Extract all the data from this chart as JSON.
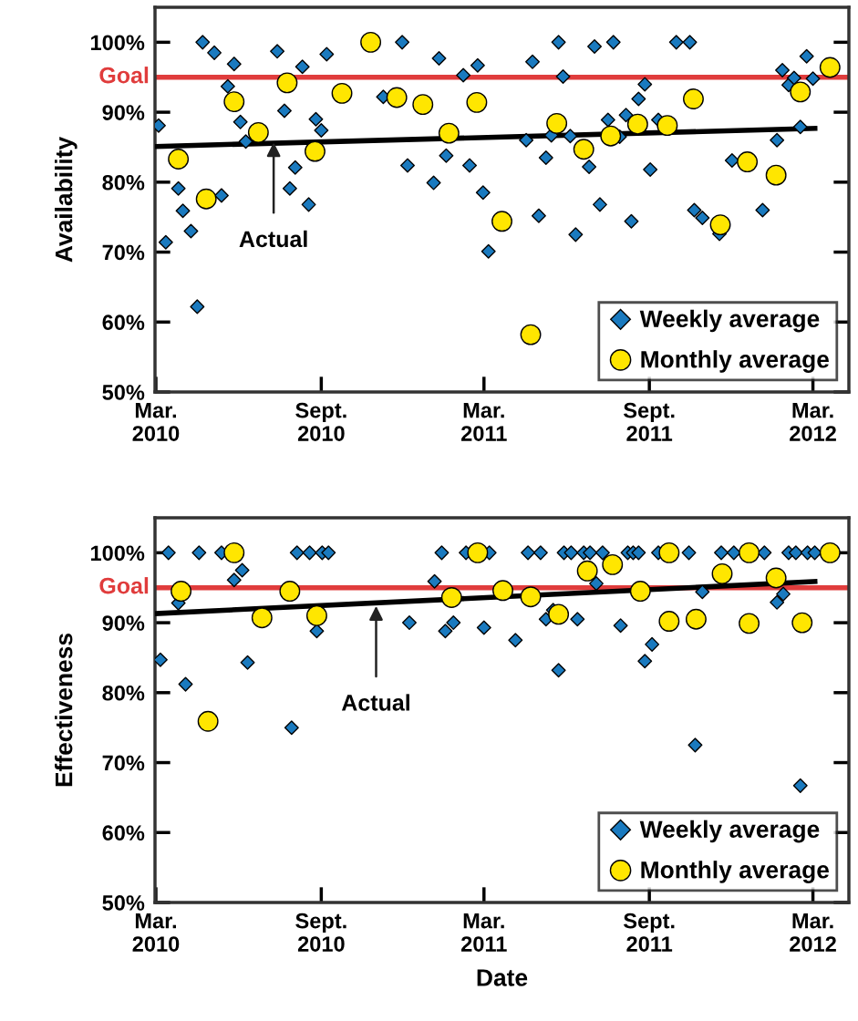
{
  "chart_data": [
    {
      "type": "scatter",
      "ylabel": "Availability",
      "xlim": [
        "2010-02-28",
        "2012-04-10"
      ],
      "ylim": [
        50,
        105
      ],
      "xticks": [
        {
          "value": "2010-03-01",
          "label": "Mar.\n2010"
        },
        {
          "value": "2010-09-01",
          "label": "Sept.\n2010"
        },
        {
          "value": "2011-03-01",
          "label": "Mar.\n2011"
        },
        {
          "value": "2011-09-01",
          "label": "Sept.\n2011"
        },
        {
          "value": "2012-03-01",
          "label": "Mar.\n2012"
        }
      ],
      "yticks": [
        {
          "value": 50,
          "label": "50%"
        },
        {
          "value": 60,
          "label": "60%"
        },
        {
          "value": 70,
          "label": "70%"
        },
        {
          "value": 80,
          "label": "80%"
        },
        {
          "value": 90,
          "label": "90%"
        },
        {
          "value": 100,
          "label": "100%"
        }
      ],
      "grid": false,
      "legend": "bottom right",
      "ref_lines": [
        {
          "axis": "y",
          "value": 95,
          "label": "Goal",
          "color": "#e03c3c"
        }
      ],
      "annotations": [
        {
          "text": "Actual",
          "x": "2010-07-10",
          "y": 85.7
        }
      ],
      "series": [
        {
          "name": "Weekly average",
          "color": "#1a7abf",
          "marker": "diamond",
          "x": [
            "2010-03-04",
            "2010-03-12",
            "2010-03-26",
            "2010-03-31",
            "2010-04-09",
            "2010-04-16",
            "2010-04-22",
            "2010-05-05",
            "2010-05-13",
            "2010-05-20",
            "2010-05-27",
            "2010-06-03",
            "2010-06-09",
            "2010-07-14",
            "2010-07-22",
            "2010-07-28",
            "2010-08-03",
            "2010-08-11",
            "2010-08-18",
            "2010-08-26",
            "2010-09-01",
            "2010-09-07",
            "2010-11-09",
            "2010-11-30",
            "2010-12-06",
            "2011-01-04",
            "2011-01-10",
            "2011-01-18",
            "2011-02-06",
            "2011-02-13",
            "2011-02-22",
            "2011-02-28",
            "2011-03-06",
            "2011-04-17",
            "2011-04-24",
            "2011-05-01",
            "2011-05-09",
            "2011-05-15",
            "2011-05-23",
            "2011-05-28",
            "2011-06-05",
            "2011-06-11",
            "2011-06-26",
            "2011-07-02",
            "2011-07-08",
            "2011-07-17",
            "2011-07-23",
            "2011-07-30",
            "2011-08-06",
            "2011-08-12",
            "2011-08-20",
            "2011-08-27",
            "2011-09-02",
            "2011-09-11",
            "2011-10-01",
            "2011-10-16",
            "2011-10-21",
            "2011-10-30",
            "2011-11-18",
            "2011-12-02",
            "2012-01-05",
            "2012-01-21",
            "2012-01-27",
            "2012-02-03",
            "2012-02-09",
            "2012-02-16",
            "2012-02-23",
            "2012-03-01"
          ],
          "values": [
            88.1,
            71.4,
            79.1,
            75.9,
            73.0,
            62.2,
            100,
            98.5,
            78.1,
            93.7,
            96.9,
            88.6,
            85.8,
            98.7,
            90.2,
            79.1,
            82.1,
            96.5,
            76.8,
            89.0,
            87.4,
            98.3,
            92.2,
            100,
            82.4,
            79.9,
            97.7,
            83.8,
            95.3,
            82.4,
            96.7,
            78.5,
            70.1,
            86.0,
            97.2,
            75.2,
            83.5,
            86.7,
            100,
            95.1,
            86.6,
            72.5,
            82.2,
            99.4,
            76.8,
            88.9,
            100,
            86.5,
            89.6,
            74.4,
            91.9,
            94.0,
            81.8,
            88.9,
            100,
            100,
            76.0,
            74.9,
            72.6,
            83.1,
            76.0,
            86.0,
            96.0,
            93.9,
            94.9,
            87.9,
            98.0,
            94.8
          ]
        },
        {
          "name": "Monthly average",
          "color": "#ffe600",
          "marker": "circle",
          "x": [
            "2010-03-26",
            "2010-04-26",
            "2010-05-27",
            "2010-06-23",
            "2010-07-25",
            "2010-08-25",
            "2010-09-24",
            "2010-10-26",
            "2010-11-24",
            "2010-12-23",
            "2011-01-21",
            "2011-02-21",
            "2011-03-21",
            "2011-04-22",
            "2011-05-21",
            "2011-06-20",
            "2011-07-20",
            "2011-08-19",
            "2011-09-21",
            "2011-10-20",
            "2011-11-19",
            "2011-12-19",
            "2012-01-20",
            "2012-02-16",
            "2012-03-20"
          ],
          "values": [
            83.3,
            77.6,
            91.5,
            87.1,
            94.2,
            84.4,
            92.7,
            100,
            92.1,
            91.1,
            87.0,
            91.4,
            74.4,
            58.2,
            88.4,
            84.7,
            86.6,
            88.3,
            88.1,
            91.9,
            73.9,
            82.9,
            81.0,
            92.9,
            96.4
          ]
        },
        {
          "type": "line",
          "color": "#000000",
          "x": [
            "2010-02-28",
            "2012-03-06"
          ],
          "values": [
            85.1,
            87.7
          ]
        }
      ]
    },
    {
      "type": "scatter",
      "ylabel": "Effectiveness",
      "xlabel": "Date",
      "xlim": [
        "2010-02-28",
        "2012-04-10"
      ],
      "ylim": [
        50,
        105
      ],
      "xticks": [
        {
          "value": "2010-03-01",
          "label": "Mar.\n2010"
        },
        {
          "value": "2010-09-01",
          "label": "Sept.\n2010"
        },
        {
          "value": "2011-03-01",
          "label": "Mar.\n2011"
        },
        {
          "value": "2011-09-01",
          "label": "Sept.\n2011"
        },
        {
          "value": "2012-03-01",
          "label": "Mar.\n2012"
        }
      ],
      "yticks": [
        {
          "value": 50,
          "label": "50%"
        },
        {
          "value": 60,
          "label": "60%"
        },
        {
          "value": 70,
          "label": "70%"
        },
        {
          "value": 80,
          "label": "80%"
        },
        {
          "value": 90,
          "label": "90%"
        },
        {
          "value": 100,
          "label": "100%"
        }
      ],
      "grid": false,
      "legend": "bottom right",
      "ref_lines": [
        {
          "axis": "y",
          "value": 95,
          "label": "Goal",
          "color": "#e03c3c"
        }
      ],
      "annotations": [
        {
          "text": "Actual",
          "x": "2010-11-01",
          "y": 92.4
        }
      ],
      "series": [
        {
          "name": "Weekly average",
          "color": "#1a7abf",
          "marker": "diamond",
          "x": [
            "2010-03-06",
            "2010-03-15",
            "2010-03-26",
            "2010-04-03",
            "2010-04-18",
            "2010-05-13",
            "2010-05-27",
            "2010-06-05",
            "2010-06-11",
            "2010-07-30",
            "2010-08-05",
            "2010-08-19",
            "2010-08-27",
            "2010-09-02",
            "2010-09-09",
            "2010-12-08",
            "2011-01-05",
            "2011-01-13",
            "2011-01-17",
            "2011-01-26",
            "2011-02-09",
            "2011-03-01",
            "2011-03-07",
            "2011-04-05",
            "2011-04-19",
            "2011-05-03",
            "2011-05-09",
            "2011-05-17",
            "2011-05-23",
            "2011-05-29",
            "2011-06-06",
            "2011-06-13",
            "2011-06-20",
            "2011-06-27",
            "2011-07-04",
            "2011-07-11",
            "2011-07-31",
            "2011-08-08",
            "2011-08-14",
            "2011-08-20",
            "2011-08-27",
            "2011-09-04",
            "2011-09-11",
            "2011-10-15",
            "2011-10-22",
            "2011-10-30",
            "2011-11-20",
            "2011-12-04",
            "2012-01-07",
            "2012-01-21",
            "2012-01-28",
            "2012-02-03",
            "2012-02-11",
            "2012-02-16",
            "2012-02-24",
            "2012-03-03"
          ],
          "values": [
            84.7,
            100,
            92.8,
            81.2,
            100,
            100,
            96.1,
            97.5,
            84.3,
            75.0,
            100,
            100,
            88.8,
            100,
            100,
            90.0,
            95.9,
            100,
            88.8,
            90.0,
            100,
            89.3,
            100,
            87.5,
            100,
            100,
            90.5,
            91.8,
            83.2,
            100,
            100,
            90.5,
            100,
            100,
            95.6,
            100,
            89.6,
            100,
            100,
            100,
            84.5,
            86.9,
            100,
            100,
            72.5,
            94.4,
            100,
            100,
            100,
            92.9,
            94.1,
            100,
            100,
            66.7,
            100,
            100
          ]
        },
        {
          "name": "Monthly average",
          "color": "#ffe600",
          "marker": "circle",
          "x": [
            "2010-03-29",
            "2010-04-28",
            "2010-05-27",
            "2010-06-27",
            "2010-07-28",
            "2010-08-27",
            "2011-01-24",
            "2011-02-22",
            "2011-03-22",
            "2011-04-22",
            "2011-05-23",
            "2011-06-24",
            "2011-07-22",
            "2011-08-22",
            "2011-09-23",
            "2011-09-23",
            "2011-10-23",
            "2011-11-21",
            "2011-12-21",
            "2011-12-21",
            "2012-01-20",
            "2012-02-18",
            "2012-03-20"
          ],
          "values": [
            94.5,
            75.9,
            100,
            90.7,
            94.5,
            91.0,
            93.6,
            100,
            94.6,
            93.7,
            91.2,
            97.4,
            98.3,
            94.5,
            100,
            90.2,
            90.5,
            97.0,
            100,
            89.9,
            96.4,
            90.0,
            100
          ]
        },
        {
          "type": "line",
          "color": "#000000",
          "x": [
            "2010-02-28",
            "2012-03-06"
          ],
          "values": [
            91.3,
            95.9
          ]
        }
      ]
    }
  ]
}
